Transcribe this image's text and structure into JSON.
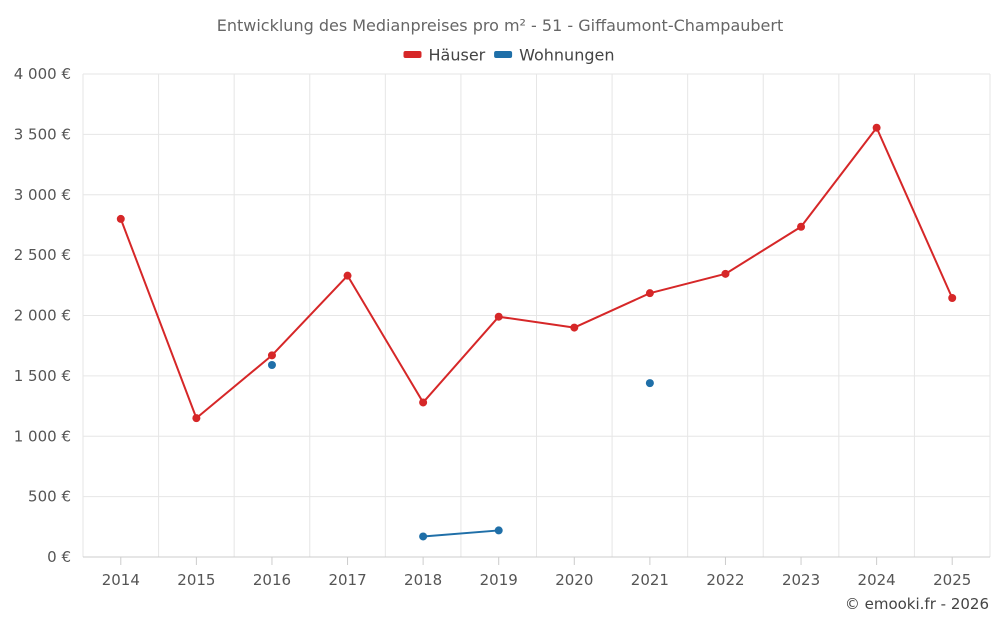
{
  "chart_data": {
    "type": "line",
    "title": "Entwicklung des Medianpreises pro m² - 51 - Giffaumont-Champaubert",
    "categories": [
      "2014",
      "2015",
      "2016",
      "2017",
      "2018",
      "2019",
      "2020",
      "2021",
      "2022",
      "2023",
      "2024",
      "2025"
    ],
    "series": [
      {
        "name": "Häuser",
        "color": "#d62728",
        "values": [
          2800,
          1150,
          1670,
          2330,
          1280,
          1990,
          1900,
          2185,
          2345,
          2735,
          3555,
          2145
        ]
      },
      {
        "name": "Wohnungen",
        "color": "#1f6fa8",
        "values": [
          null,
          null,
          1590,
          null,
          170,
          220,
          null,
          1440,
          null,
          null,
          null,
          null
        ]
      }
    ],
    "ylim": [
      0,
      4000
    ],
    "yticks": [
      0,
      500,
      1000,
      1500,
      2000,
      2500,
      3000,
      3500,
      4000
    ],
    "ytick_labels": [
      "0 €",
      "500 €",
      "1 000 €",
      "1 500 €",
      "2 000 €",
      "2 500 €",
      "3 000 €",
      "3 500 €",
      "4 000 €"
    ],
    "grid": true,
    "legend_position": "top-center",
    "xlabel": "",
    "ylabel": ""
  },
  "credit": "© emooki.fr - 2026"
}
